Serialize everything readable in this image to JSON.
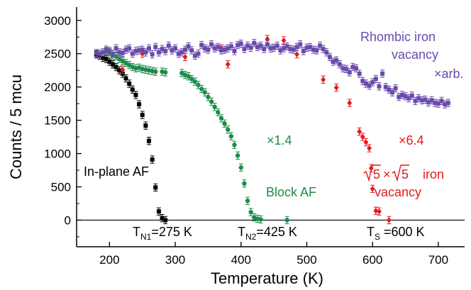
{
  "chart_data": {
    "type": "scatter",
    "xlabel": "Temperature (K)",
    "ylabel": "Counts / 5 mcu",
    "xlim": [
      150,
      740
    ],
    "ylim": [
      -400,
      3200
    ],
    "x_ticks": [
      200,
      300,
      400,
      500,
      600,
      700
    ],
    "y_ticks": [
      0,
      500,
      1000,
      1500,
      2000,
      2500,
      3000
    ],
    "grid": false,
    "series": [
      {
        "color": "#000000",
        "marker": "square",
        "points": [
          [
            180,
            2490
          ],
          [
            185,
            2470
          ],
          [
            190,
            2440
          ],
          [
            195,
            2420
          ],
          [
            200,
            2380
          ],
          [
            205,
            2340
          ],
          [
            210,
            2300
          ],
          [
            215,
            2250
          ],
          [
            220,
            2200
          ],
          [
            225,
            2130
          ],
          [
            230,
            2050
          ],
          [
            235,
            1960
          ],
          [
            240,
            1880
          ],
          [
            245,
            1740
          ],
          [
            250,
            1580
          ],
          [
            255,
            1420
          ],
          [
            260,
            1190
          ],
          [
            265,
            910
          ],
          [
            270,
            490
          ],
          [
            275,
            130
          ],
          [
            280,
            30
          ],
          [
            285,
            0
          ]
        ]
      },
      {
        "color": "#1e8a4a",
        "marker": "circle",
        "points": [
          [
            195,
            2540
          ],
          [
            200,
            2520
          ],
          [
            205,
            2470
          ],
          [
            210,
            2460
          ],
          [
            215,
            2420
          ],
          [
            220,
            2390
          ],
          [
            225,
            2360
          ],
          [
            230,
            2330
          ],
          [
            235,
            2300
          ],
          [
            240,
            2280
          ],
          [
            245,
            2290
          ],
          [
            250,
            2270
          ],
          [
            255,
            2260
          ],
          [
            260,
            2250
          ],
          [
            265,
            2240
          ],
          [
            270,
            2230
          ],
          [
            280,
            2230
          ],
          [
            285,
            2220
          ],
          [
            310,
            2210
          ],
          [
            315,
            2180
          ],
          [
            320,
            2160
          ],
          [
            325,
            2120
          ],
          [
            330,
            2080
          ],
          [
            335,
            2030
          ],
          [
            340,
            1970
          ],
          [
            345,
            1920
          ],
          [
            350,
            1850
          ],
          [
            355,
            1780
          ],
          [
            360,
            1700
          ],
          [
            365,
            1620
          ],
          [
            370,
            1530
          ],
          [
            375,
            1450
          ],
          [
            380,
            1360
          ],
          [
            385,
            1260
          ],
          [
            390,
            1130
          ],
          [
            395,
            970
          ],
          [
            400,
            790
          ],
          [
            405,
            550
          ],
          [
            410,
            290
          ],
          [
            415,
            120
          ],
          [
            420,
            40
          ],
          [
            425,
            20
          ],
          [
            430,
            10
          ],
          [
            470,
            0
          ]
        ]
      },
      {
        "color": "#e31a1c",
        "marker": "diamond",
        "points": [
          [
            220,
            2260
          ],
          [
            250,
            2500
          ],
          [
            315,
            2450
          ],
          [
            370,
            2580
          ],
          [
            380,
            2340
          ],
          [
            440,
            2720
          ],
          [
            465,
            2700
          ],
          [
            485,
            2490
          ],
          [
            525,
            2110
          ],
          [
            545,
            1990
          ],
          [
            565,
            1760
          ],
          [
            580,
            1330
          ],
          [
            585,
            1250
          ],
          [
            590,
            1170
          ],
          [
            595,
            1080
          ],
          [
            598,
            780
          ],
          [
            600,
            470
          ],
          [
            605,
            140
          ],
          [
            610,
            130
          ],
          [
            625,
            0
          ]
        ]
      },
      {
        "color": "#6a4aad",
        "marker": "square",
        "points": [
          [
            180,
            2510
          ],
          [
            185,
            2500
          ],
          [
            190,
            2520
          ],
          [
            195,
            2560
          ],
          [
            200,
            2540
          ],
          [
            205,
            2500
          ],
          [
            210,
            2580
          ],
          [
            215,
            2520
          ],
          [
            220,
            2510
          ],
          [
            225,
            2560
          ],
          [
            230,
            2580
          ],
          [
            235,
            2500
          ],
          [
            240,
            2540
          ],
          [
            245,
            2550
          ],
          [
            250,
            2560
          ],
          [
            255,
            2520
          ],
          [
            260,
            2580
          ],
          [
            265,
            2490
          ],
          [
            270,
            2600
          ],
          [
            275,
            2520
          ],
          [
            280,
            2570
          ],
          [
            285,
            2540
          ],
          [
            290,
            2620
          ],
          [
            295,
            2550
          ],
          [
            300,
            2580
          ],
          [
            305,
            2500
          ],
          [
            310,
            2520
          ],
          [
            315,
            2560
          ],
          [
            320,
            2610
          ],
          [
            325,
            2550
          ],
          [
            330,
            2470
          ],
          [
            335,
            2500
          ],
          [
            340,
            2630
          ],
          [
            345,
            2580
          ],
          [
            350,
            2560
          ],
          [
            355,
            2640
          ],
          [
            360,
            2580
          ],
          [
            365,
            2600
          ],
          [
            370,
            2550
          ],
          [
            375,
            2560
          ],
          [
            380,
            2580
          ],
          [
            385,
            2610
          ],
          [
            390,
            2540
          ],
          [
            395,
            2630
          ],
          [
            400,
            2650
          ],
          [
            405,
            2570
          ],
          [
            410,
            2620
          ],
          [
            415,
            2590
          ],
          [
            420,
            2660
          ],
          [
            425,
            2600
          ],
          [
            430,
            2620
          ],
          [
            435,
            2570
          ],
          [
            440,
            2640
          ],
          [
            445,
            2580
          ],
          [
            450,
            2590
          ],
          [
            455,
            2620
          ],
          [
            460,
            2550
          ],
          [
            465,
            2580
          ],
          [
            470,
            2610
          ],
          [
            475,
            2570
          ],
          [
            480,
            2560
          ],
          [
            485,
            2600
          ],
          [
            490,
            2640
          ],
          [
            495,
            2540
          ],
          [
            500,
            2590
          ],
          [
            505,
            2600
          ],
          [
            510,
            2560
          ],
          [
            515,
            2550
          ],
          [
            520,
            2620
          ],
          [
            525,
            2570
          ],
          [
            530,
            2520
          ],
          [
            535,
            2450
          ],
          [
            540,
            2380
          ],
          [
            545,
            2400
          ],
          [
            550,
            2340
          ],
          [
            555,
            2280
          ],
          [
            560,
            2270
          ],
          [
            565,
            2220
          ],
          [
            570,
            2300
          ],
          [
            575,
            2280
          ],
          [
            580,
            2200
          ],
          [
            585,
            2090
          ],
          [
            590,
            2050
          ],
          [
            595,
            2020
          ],
          [
            600,
            2070
          ],
          [
            605,
            2120
          ],
          [
            610,
            2010
          ],
          [
            615,
            2200
          ],
          [
            620,
            2000
          ],
          [
            625,
            1960
          ],
          [
            630,
            1920
          ],
          [
            635,
            1980
          ],
          [
            640,
            1850
          ],
          [
            645,
            1880
          ],
          [
            650,
            1860
          ],
          [
            655,
            1830
          ],
          [
            660,
            1870
          ],
          [
            665,
            1790
          ],
          [
            670,
            1830
          ],
          [
            675,
            1800
          ],
          [
            680,
            1810
          ],
          [
            685,
            1770
          ],
          [
            690,
            1800
          ],
          [
            695,
            1760
          ],
          [
            700,
            1750
          ],
          [
            705,
            1790
          ],
          [
            710,
            1740
          ],
          [
            715,
            1760
          ]
        ]
      }
    ],
    "annotations": [
      {
        "key": "rhombic1",
        "text": "Rhombic  iron",
        "color": "#6a4aad"
      },
      {
        "key": "rhombic2",
        "text": "vacancy",
        "color": "#6a4aad"
      },
      {
        "key": "arb",
        "text": "×arb.",
        "color": "#6a4aad"
      },
      {
        "key": "x14",
        "text": "×1.4",
        "color": "#1e8a4a"
      },
      {
        "key": "x64",
        "text": "×6.4",
        "color": "#e31a1c"
      },
      {
        "key": "inplane",
        "text": "In-plane AF",
        "color": "#000000"
      },
      {
        "key": "block",
        "text": "Block AF",
        "color": "#1e8a4a"
      },
      {
        "key": "iron",
        "text": "iron",
        "color": "#e31a1c"
      },
      {
        "key": "vacancy",
        "text": "vacancy",
        "color": "#e31a1c"
      }
    ],
    "sqrt_label": {
      "rad": "5",
      "times": "×",
      "iron": "iron",
      "color": "#e31a1c"
    },
    "transitions": [
      {
        "T": "T",
        "sub": "N1",
        "rest": "=275 K"
      },
      {
        "T": "T",
        "sub": "N2",
        "rest": "=425 K"
      },
      {
        "T": "T",
        "sub": "S",
        "rest": " =600 K"
      }
    ]
  }
}
